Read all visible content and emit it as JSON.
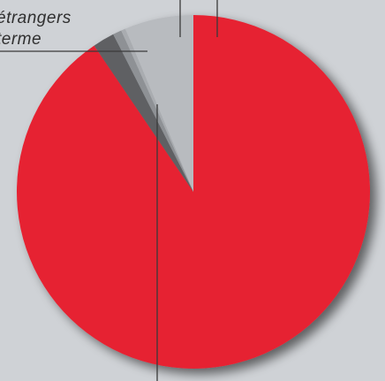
{
  "chart_data": {
    "type": "pie",
    "title": "",
    "labels": [
      "étrangers",
      "terme"
    ],
    "slices": [
      {
        "value": 90.5,
        "color": "#e62232"
      },
      {
        "value": 2.0,
        "color": "#5e6063"
      },
      {
        "value": 0.8,
        "color": "#8e9195"
      },
      {
        "value": 0.4,
        "color": "#a9acb0"
      },
      {
        "value": 6.3,
        "color": "#b8bbbf"
      }
    ]
  }
}
